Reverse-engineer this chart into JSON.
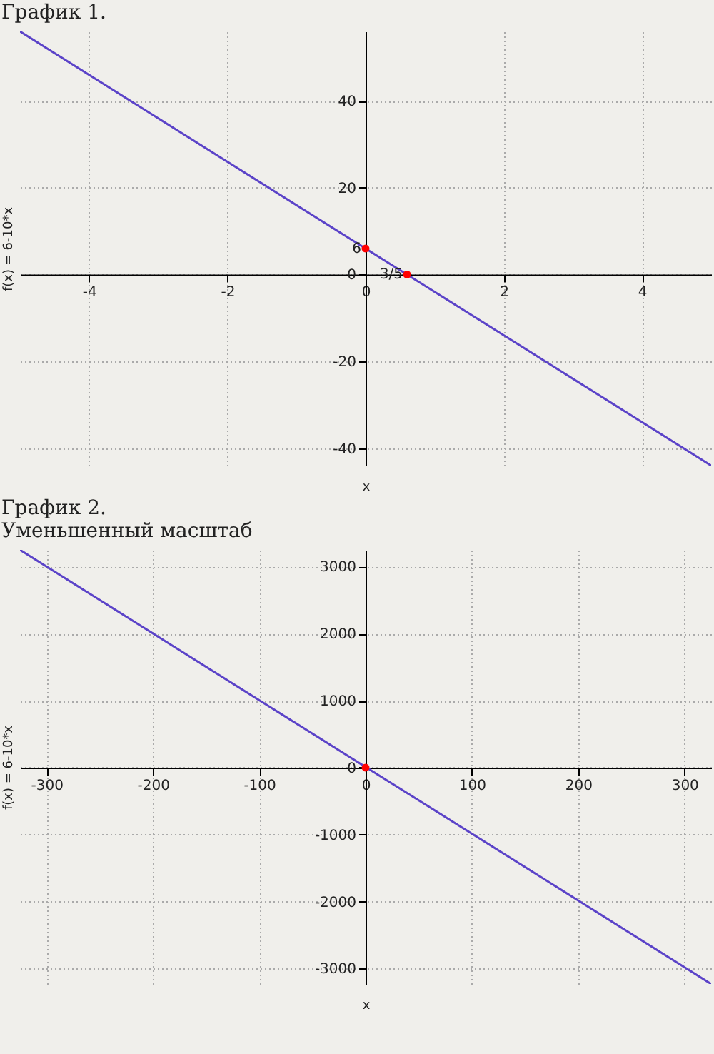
{
  "chart_data": [
    {
      "type": "line",
      "title": "График 1.",
      "xlabel": "x",
      "ylabel": "f(x) = 6-10*x",
      "xlim": [
        -5,
        5
      ],
      "ylim": [
        -44,
        56
      ],
      "xticks": [
        -4,
        -2,
        0,
        2,
        4
      ],
      "yticks": [
        -40,
        -20,
        0,
        20,
        40
      ],
      "grid": true,
      "series": [
        {
          "type": "line",
          "color": "#5b43c8",
          "x": [
            -5,
            5
          ],
          "values": [
            56,
            -44
          ]
        },
        {
          "type": "scatter",
          "color": "#ff0000",
          "x": [
            0,
            0.6
          ],
          "values": [
            6,
            0
          ]
        }
      ],
      "annotations": [
        {
          "text": "6",
          "x": 0,
          "y": 6
        },
        {
          "text": "3/5",
          "x": 0.6,
          "y": 0
        }
      ]
    },
    {
      "type": "line",
      "title": "График 2.",
      "subtitle": "Уменьшенный масштаб",
      "xlabel": "x",
      "ylabel": "f(x) = 6-10*x",
      "xlim": [
        -325,
        325
      ],
      "ylim": [
        -3230,
        3250
      ],
      "xticks": [
        -300,
        -200,
        -100,
        0,
        100,
        200,
        300
      ],
      "yticks": [
        -3000,
        -2000,
        -1000,
        0,
        1000,
        2000,
        3000
      ],
      "grid": true,
      "series": [
        {
          "type": "line",
          "color": "#5b43c8",
          "x": [
            -325,
            325
          ],
          "values": [
            3250,
            -3230
          ]
        },
        {
          "type": "scatter",
          "color": "#ff0000",
          "x": [
            0
          ],
          "values": [
            0
          ]
        }
      ]
    }
  ]
}
